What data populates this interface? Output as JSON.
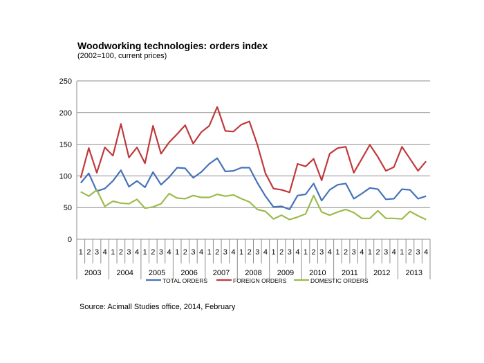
{
  "title": "Woodworking technologies: orders index",
  "subtitle": "(2002=100, current prices)",
  "source": "Source: Acimall Studies office, 2014, February",
  "chart_data": {
    "type": "line",
    "title": "Woodworking technologies: orders index",
    "subtitle": "(2002=100, current prices)",
    "xlabel": "",
    "ylabel": "",
    "ylim": [
      0,
      250
    ],
    "yticks": [
      "0",
      "50",
      "100",
      "150",
      "200",
      "250"
    ],
    "grid": true,
    "legend_position": "bottom",
    "quarter_labels": [
      "1",
      "2",
      "3",
      "4"
    ],
    "years": [
      "2003",
      "2004",
      "2005",
      "2006",
      "2007",
      "2008",
      "2009",
      "2010",
      "2011",
      "2012",
      "2013"
    ],
    "categories": [
      "2003 Q1",
      "2003 Q2",
      "2003 Q3",
      "2003 Q4",
      "2004 Q1",
      "2004 Q2",
      "2004 Q3",
      "2004 Q4",
      "2005 Q1",
      "2005 Q2",
      "2005 Q3",
      "2005 Q4",
      "2006 Q1",
      "2006 Q2",
      "2006 Q3",
      "2006 Q4",
      "2007 Q1",
      "2007 Q2",
      "2007 Q3",
      "2007 Q4",
      "2008 Q1",
      "2008 Q2",
      "2008 Q3",
      "2008 Q4",
      "2009 Q1",
      "2009 Q2",
      "2009 Q3",
      "2009 Q4",
      "2010 Q1",
      "2010 Q2",
      "2010 Q3",
      "2010 Q4",
      "2011 Q1",
      "2011 Q2",
      "2011 Q3",
      "2011 Q4",
      "2012 Q1",
      "2012 Q2",
      "2012 Q3",
      "2012 Q4",
      "2013 Q1",
      "2013 Q2",
      "2013 Q3",
      "2013 Q4"
    ],
    "series": [
      {
        "name": "TOTAL ORDERS",
        "color": "#4572b8",
        "values": [
          89,
          104,
          76,
          80,
          92,
          109,
          83,
          92,
          82,
          106,
          86,
          98,
          113,
          112,
          97,
          106,
          119,
          128,
          107,
          108,
          113,
          113,
          89,
          68,
          51,
          52,
          47,
          69,
          71,
          88,
          61,
          78,
          86,
          88,
          64,
          72,
          81,
          79,
          63,
          64,
          79,
          78,
          64,
          68
        ]
      },
      {
        "name": "FOREIGN ORDERS",
        "color": "#c0383a",
        "values": [
          97,
          144,
          105,
          145,
          132,
          182,
          129,
          145,
          120,
          179,
          135,
          153,
          166,
          180,
          151,
          169,
          179,
          209,
          171,
          170,
          181,
          186,
          149,
          104,
          80,
          78,
          74,
          119,
          115,
          127,
          93,
          135,
          144,
          146,
          105,
          127,
          149,
          130,
          108,
          114,
          146,
          127,
          108,
          123
        ]
      },
      {
        "name": "DOMESTIC ORDERS",
        "color": "#9bbb4c",
        "values": [
          75,
          68,
          78,
          52,
          60,
          57,
          56,
          63,
          49,
          51,
          56,
          72,
          65,
          64,
          69,
          66,
          66,
          71,
          68,
          70,
          64,
          59,
          47,
          44,
          32,
          38,
          31,
          35,
          40,
          69,
          43,
          38,
          43,
          47,
          42,
          33,
          33,
          45,
          33,
          33,
          32,
          44,
          37,
          31
        ]
      }
    ]
  }
}
